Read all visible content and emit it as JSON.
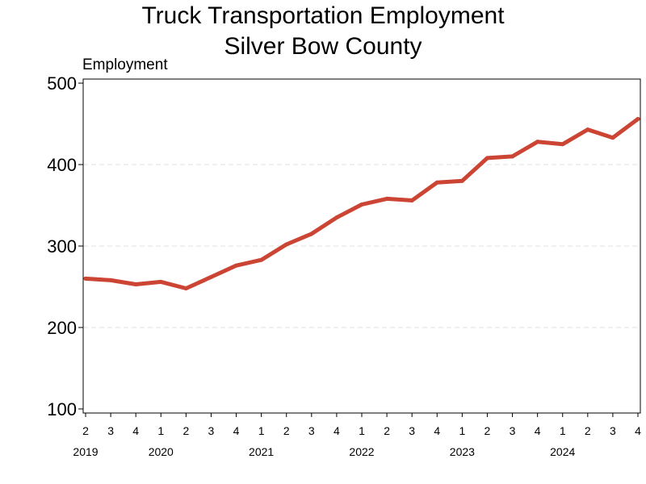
{
  "chart_data": {
    "type": "line",
    "title_lines": [
      "Truck Transportation Employment",
      "Silver Bow County"
    ],
    "ylabel": "Employment",
    "ylim": [
      95,
      505
    ],
    "yticks": [
      100,
      200,
      300,
      400,
      500
    ],
    "grid": "horizontal-dashed",
    "line_color": "#CC4433",
    "quarters": [
      "2",
      "3",
      "4",
      "1",
      "2",
      "3",
      "4",
      "1",
      "2",
      "3",
      "4",
      "1",
      "2",
      "3",
      "4",
      "1",
      "2",
      "3",
      "4",
      "1",
      "2",
      "3",
      "4"
    ],
    "years": [
      {
        "label": "2019",
        "start_index": 0
      },
      {
        "label": "2020",
        "start_index": 3
      },
      {
        "label": "2021",
        "start_index": 7
      },
      {
        "label": "2022",
        "start_index": 11
      },
      {
        "label": "2023",
        "start_index": 15
      },
      {
        "label": "2024",
        "start_index": 19
      }
    ],
    "series": [
      {
        "values": [
          260,
          258,
          253,
          256,
          248,
          262,
          276,
          283,
          302,
          315,
          335,
          351,
          358,
          356,
          378,
          380,
          408,
          410,
          428,
          425,
          443,
          433,
          456
        ]
      }
    ]
  }
}
